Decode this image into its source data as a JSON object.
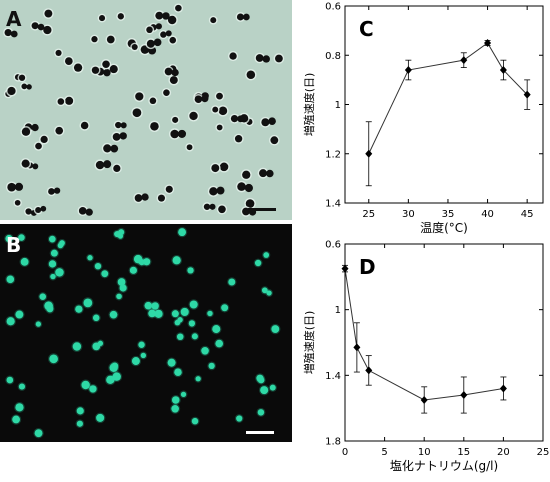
{
  "panels": {
    "a": {
      "letter": "A"
    },
    "b": {
      "letter": "B"
    }
  },
  "colors": {
    "phase_background": "#b9d2c6",
    "cell_dark": "#111111",
    "fluor_background": "#0a0a0a",
    "fluor_cell": "#2ed9a6",
    "scale_bar": "#ffffff"
  },
  "chart_data": [
    {
      "type": "line",
      "letter": "C",
      "x": [
        25,
        30,
        37,
        40,
        42,
        45
      ],
      "y": [
        1.2,
        0.86,
        0.82,
        0.75,
        0.86,
        0.96
      ],
      "yerr": [
        0.13,
        0.04,
        0.03,
        0.01,
        0.04,
        0.06
      ],
      "xlim": [
        22,
        47
      ],
      "ylim": [
        0.6,
        1.4
      ],
      "y_inverted": true,
      "xticks": [
        25,
        30,
        35,
        40,
        45
      ],
      "yticks": [
        0.6,
        0.8,
        1,
        1.2,
        1.4
      ],
      "ytick_labels": [
        "0.6",
        "0.8",
        "1",
        "1.2",
        "1.4"
      ],
      "xlabel": "温度(°C)",
      "ylabel": "増殖速度(日)",
      "marker": "diamond",
      "grid": false
    },
    {
      "type": "line",
      "letter": "D",
      "x": [
        0,
        1.5,
        3,
        10,
        15,
        20
      ],
      "y": [
        0.75,
        1.23,
        1.37,
        1.55,
        1.52,
        1.48
      ],
      "yerr": [
        0.02,
        0.15,
        0.09,
        0.08,
        0.11,
        0.07
      ],
      "xlim": [
        0,
        25
      ],
      "ylim": [
        0.6,
        1.8
      ],
      "y_inverted": true,
      "xticks": [
        0,
        5,
        10,
        15,
        20,
        25
      ],
      "yticks": [
        0.6,
        1,
        1.4,
        1.8
      ],
      "ytick_labels": [
        "0.6",
        "1",
        "1.4",
        "1.8"
      ],
      "xlabel": "塩化ナトリウム(g/l)",
      "ylabel": "増殖速度(日)",
      "marker": "diamond",
      "grid": false
    }
  ]
}
